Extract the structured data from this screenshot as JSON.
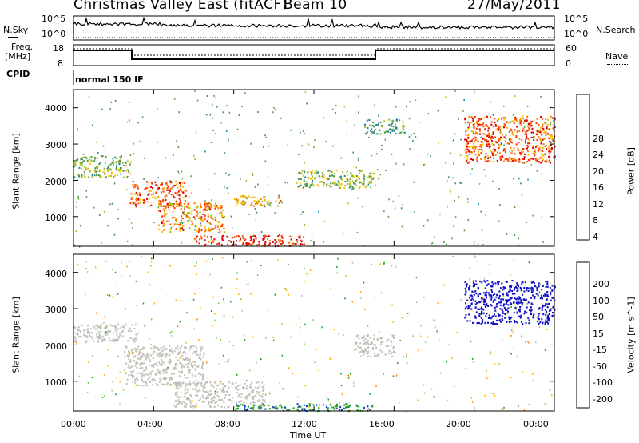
{
  "header": {
    "title": "Christmas Valley East (fitACF)",
    "beam": "Beam 10",
    "date": "27/May/2011"
  },
  "panels": {
    "nsky": {
      "label": "N.Sky",
      "left_ticks": [
        "10^5",
        "10^0"
      ],
      "right_ticks": [
        "10^5",
        "10^0"
      ],
      "right_label": "N.Search"
    },
    "freq": {
      "label_line1": "Freq.",
      "label_line2": "[MHz]",
      "left_ticks": [
        "18",
        "8"
      ],
      "right_ticks": [
        "60",
        "0"
      ],
      "right_label": "Nave"
    },
    "cpid": {
      "label": "CPID",
      "value": "normal 150 IF"
    }
  },
  "colors": {
    "scale_power": [
      "#0a1fe0",
      "#1a7fb0",
      "#3a8f60",
      "#5aa040",
      "#a0c020",
      "#ffc000",
      "#ff8000",
      "#ff4000",
      "#e00000"
    ],
    "scale_velocity": [
      "#1010c8",
      "#1040e0",
      "#20a020",
      "#80d040",
      "#c0c0b8",
      "#ffb000",
      "#ff8000",
      "#ff4000",
      "#e00000"
    ]
  },
  "chart_data": [
    {
      "type": "heatmap",
      "name": "power",
      "ylabel": "Slant Range [km]",
      "xlabel": "",
      "xlim": [
        0,
        24
      ],
      "ylim": [
        180,
        4500
      ],
      "y_ticks": [
        "1000",
        "2000",
        "3000",
        "4000"
      ],
      "y_tick_values": [
        1000,
        2000,
        3000,
        4000
      ],
      "colorbar_label": "Power [dB]",
      "colorbar_ticks": [
        "28",
        "24",
        "20",
        "16",
        "12",
        "8",
        "4"
      ],
      "colorbar_values": [
        28,
        24,
        20,
        16,
        12,
        8,
        4
      ],
      "features": [
        {
          "t0": 0.0,
          "t1": 2.8,
          "r0": 2100,
          "r1": 2700,
          "level": 12
        },
        {
          "t0": 2.8,
          "t1": 5.6,
          "r0": 1300,
          "r1": 2000,
          "level": 24
        },
        {
          "t0": 4.2,
          "t1": 7.5,
          "r0": 600,
          "r1": 1400,
          "level": 20
        },
        {
          "t0": 6.0,
          "t1": 11.5,
          "r0": 200,
          "r1": 500,
          "level": 28
        },
        {
          "t0": 8.0,
          "t1": 10.5,
          "r0": 1300,
          "r1": 1600,
          "level": 16
        },
        {
          "t0": 11.0,
          "t1": 15.0,
          "r0": 1800,
          "r1": 2300,
          "level": 12
        },
        {
          "t0": 14.5,
          "t1": 16.5,
          "r0": 3300,
          "r1": 3700,
          "level": 8
        },
        {
          "t0": 19.5,
          "t1": 24.0,
          "r0": 2500,
          "r1": 3800,
          "level": 24
        }
      ]
    },
    {
      "type": "heatmap",
      "name": "velocity",
      "ylabel": "Slant Range [km]",
      "xlabel": "Time UT",
      "xlim": [
        0,
        24
      ],
      "ylim": [
        180,
        4500
      ],
      "x_ticks": [
        "00:00",
        "04:00",
        "08:00",
        "12:00",
        "16:00",
        "20:00",
        "00:00"
      ],
      "x_tick_values": [
        0,
        4,
        8,
        12,
        16,
        20,
        24
      ],
      "y_ticks": [
        "1000",
        "2000",
        "3000",
        "4000"
      ],
      "y_tick_values": [
        1000,
        2000,
        3000,
        4000
      ],
      "colorbar_label": "Velocity [m s^-1]",
      "colorbar_ticks": [
        "200",
        "100",
        "50",
        "15",
        "-15",
        "-50",
        "-100",
        "-200"
      ],
      "colorbar_values": [
        200,
        100,
        50,
        15,
        -15,
        -50,
        -100,
        -200
      ],
      "features": [
        {
          "t0": 0.0,
          "t1": 3.2,
          "r0": 2100,
          "r1": 2600,
          "value": 0
        },
        {
          "t0": 2.5,
          "t1": 6.5,
          "r0": 900,
          "r1": 2000,
          "value": 0
        },
        {
          "t0": 5.0,
          "t1": 9.5,
          "r0": 300,
          "r1": 1000,
          "value": 0
        },
        {
          "t0": 8.0,
          "t1": 15.0,
          "r0": 200,
          "r1": 400,
          "value": 60
        },
        {
          "t0": 19.5,
          "t1": 24.0,
          "r0": 2600,
          "r1": 3800,
          "value": 200
        },
        {
          "t0": 14.0,
          "t1": 16.0,
          "r0": 1700,
          "r1": 2300,
          "value": 0
        }
      ]
    }
  ]
}
